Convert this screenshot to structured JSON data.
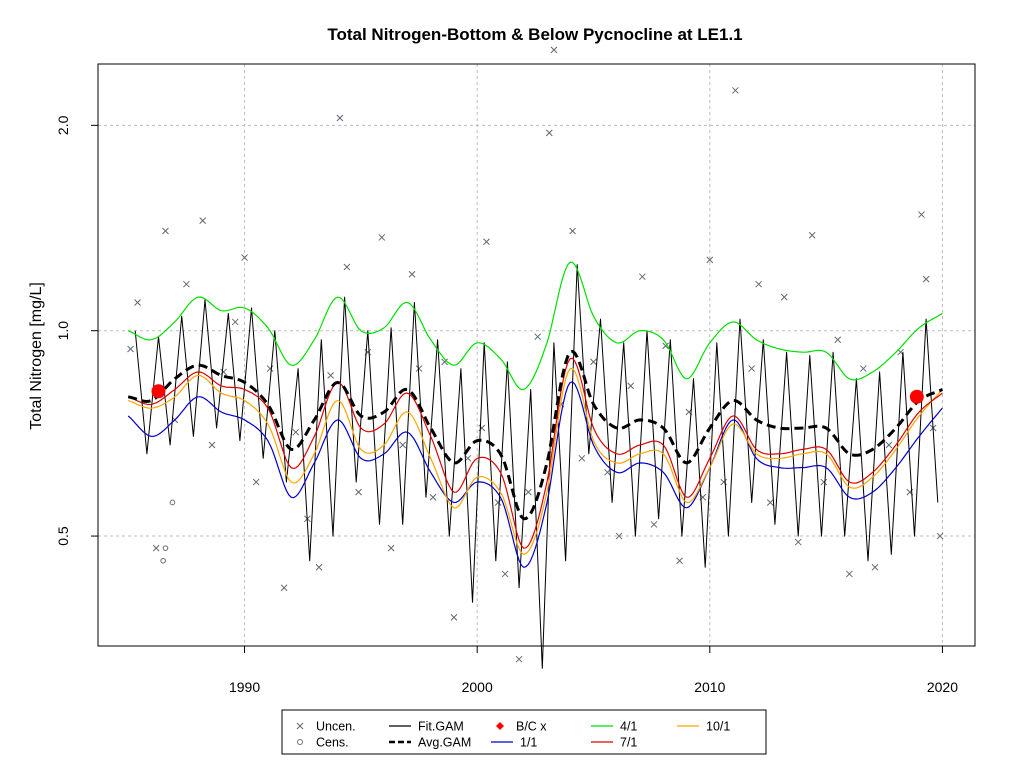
{
  "chart_data": {
    "type": "line",
    "title": "Total Nitrogen-Bottom & Below Pycnocline at LE1.1",
    "xlabel": "",
    "ylabel": "Total Nitrogen [mg/L]",
    "xlim": [
      1983.7,
      2021.4
    ],
    "ylim": [
      0.345,
      2.46
    ],
    "y_scale": "log",
    "x_ticks": [
      1990,
      2000,
      2010,
      2020
    ],
    "x_tick_labels": [
      "1990",
      "2000",
      "2010",
      "2020"
    ],
    "y_ticks": [
      0.5,
      1.0,
      2.0
    ],
    "y_tick_labels": [
      "0.5",
      "1.0",
      "2.0"
    ],
    "grid": true,
    "reference_line_y": 1.0,
    "legend": [
      {
        "key": "uncen",
        "label": "Uncen.",
        "symbol": "x",
        "color": "#606878"
      },
      {
        "key": "cens",
        "label": "Cens.",
        "symbol": "circle",
        "color": "#707070"
      },
      {
        "key": "fit",
        "label": "Fit.GAM",
        "symbol": "line",
        "color": "#000000"
      },
      {
        "key": "avg",
        "label": "Avg.GAM",
        "symbol": "dash",
        "color": "#000000"
      },
      {
        "key": "bc",
        "label": "B/C x",
        "symbol": "diamond",
        "color": "#ff0000"
      },
      {
        "key": "q1",
        "label": "1/1",
        "symbol": "line",
        "color": "#0000cd"
      },
      {
        "key": "q4",
        "label": "4/1",
        "symbol": "line",
        "color": "#00e000"
      },
      {
        "key": "q7",
        "label": "7/1",
        "symbol": "line",
        "color": "#e00000"
      },
      {
        "key": "q10",
        "label": "10/1",
        "symbol": "line",
        "color": "#ffa500"
      }
    ],
    "series": [
      {
        "key": "avg",
        "name": "Avg.GAM",
        "color": "#000000",
        "dash": true,
        "x": [
          1985.0,
          1986.0,
          1987.0,
          1988.0,
          1989.0,
          1990.0,
          1991.0,
          1992.0,
          1993.0,
          1994.0,
          1995.0,
          1996.0,
          1997.0,
          1998.0,
          1999.0,
          2000.0,
          2001.0,
          2002.0,
          2003.0,
          2004.0,
          2005.0,
          2006.0,
          2007.0,
          2008.0,
          2009.0,
          2010.0,
          2011.0,
          2012.0,
          2013.0,
          2014.0,
          2015.0,
          2016.0,
          2017.0,
          2018.0,
          2019.0,
          2020.0
        ],
        "y": [
          0.8,
          0.79,
          0.85,
          0.89,
          0.86,
          0.84,
          0.78,
          0.67,
          0.74,
          0.84,
          0.75,
          0.76,
          0.82,
          0.72,
          0.64,
          0.69,
          0.66,
          0.53,
          0.64,
          0.93,
          0.78,
          0.72,
          0.74,
          0.72,
          0.64,
          0.72,
          0.79,
          0.74,
          0.72,
          0.72,
          0.72,
          0.66,
          0.67,
          0.72,
          0.79,
          0.82
        ]
      },
      {
        "key": "q1",
        "name": "1/1",
        "color": "#0000cd",
        "x": [
          1985.0,
          1986.0,
          1987.0,
          1988.0,
          1989.0,
          1990.0,
          1991.0,
          1992.0,
          1993.0,
          1994.0,
          1995.0,
          1996.0,
          1997.0,
          1998.0,
          1999.0,
          2000.0,
          2001.0,
          2002.0,
          2003.0,
          2004.0,
          2005.0,
          2006.0,
          2007.0,
          2008.0,
          2009.0,
          2010.0,
          2011.0,
          2012.0,
          2013.0,
          2014.0,
          2015.0,
          2016.0,
          2017.0,
          2018.0,
          2019.0,
          2020.0
        ],
        "y": [
          0.75,
          0.7,
          0.74,
          0.8,
          0.76,
          0.74,
          0.69,
          0.57,
          0.64,
          0.74,
          0.65,
          0.66,
          0.71,
          0.62,
          0.56,
          0.6,
          0.57,
          0.45,
          0.56,
          0.84,
          0.68,
          0.62,
          0.64,
          0.62,
          0.55,
          0.63,
          0.74,
          0.65,
          0.63,
          0.63,
          0.63,
          0.57,
          0.58,
          0.63,
          0.7,
          0.77
        ]
      },
      {
        "key": "q4",
        "name": "4/1",
        "color": "#00e000",
        "x": [
          1985.0,
          1986.0,
          1987.0,
          1988.0,
          1989.0,
          1990.0,
          1991.0,
          1992.0,
          1993.0,
          1994.0,
          1995.0,
          1996.0,
          1997.0,
          1998.0,
          1999.0,
          2000.0,
          2001.0,
          2002.0,
          2003.0,
          2004.0,
          2005.0,
          2006.0,
          2007.0,
          2008.0,
          2009.0,
          2010.0,
          2011.0,
          2012.0,
          2013.0,
          2014.0,
          2015.0,
          2016.0,
          2017.0,
          2018.0,
          2019.0,
          2020.0
        ],
        "y": [
          1.0,
          0.97,
          1.03,
          1.12,
          1.07,
          1.08,
          1.01,
          0.89,
          0.97,
          1.12,
          1.0,
          1.01,
          1.1,
          0.97,
          0.89,
          0.96,
          0.91,
          0.82,
          0.96,
          1.26,
          1.05,
          0.96,
          1.0,
          0.97,
          0.85,
          0.96,
          1.03,
          0.97,
          0.94,
          0.93,
          0.93,
          0.85,
          0.87,
          0.93,
          1.01,
          1.06
        ]
      },
      {
        "key": "q7",
        "name": "7/1",
        "color": "#e00000",
        "x": [
          1985.0,
          1986.0,
          1987.0,
          1988.0,
          1989.0,
          1990.0,
          1991.0,
          1992.0,
          1993.0,
          1994.0,
          1995.0,
          1996.0,
          1997.0,
          1998.0,
          1999.0,
          2000.0,
          2001.0,
          2002.0,
          2003.0,
          2004.0,
          2005.0,
          2006.0,
          2007.0,
          2008.0,
          2009.0,
          2010.0,
          2011.0,
          2012.0,
          2013.0,
          2014.0,
          2015.0,
          2016.0,
          2017.0,
          2018.0,
          2019.0,
          2020.0
        ],
        "y": [
          0.8,
          0.78,
          0.82,
          0.87,
          0.83,
          0.82,
          0.77,
          0.63,
          0.7,
          0.84,
          0.72,
          0.73,
          0.81,
          0.7,
          0.58,
          0.65,
          0.62,
          0.48,
          0.6,
          0.91,
          0.72,
          0.66,
          0.68,
          0.68,
          0.57,
          0.65,
          0.75,
          0.67,
          0.66,
          0.67,
          0.67,
          0.6,
          0.62,
          0.68,
          0.76,
          0.81
        ]
      },
      {
        "key": "q10",
        "name": "10/1",
        "color": "#ffa500",
        "x": [
          1985.0,
          1986.0,
          1987.0,
          1988.0,
          1989.0,
          1990.0,
          1991.0,
          1992.0,
          1993.0,
          1994.0,
          1995.0,
          1996.0,
          1997.0,
          1998.0,
          1999.0,
          2000.0,
          2001.0,
          2002.0,
          2003.0,
          2004.0,
          2005.0,
          2006.0,
          2007.0,
          2008.0,
          2009.0,
          2010.0,
          2011.0,
          2012.0,
          2013.0,
          2014.0,
          2015.0,
          2016.0,
          2017.0,
          2018.0,
          2019.0,
          2020.0
        ],
        "y": [
          0.79,
          0.77,
          0.8,
          0.86,
          0.81,
          0.79,
          0.73,
          0.6,
          0.66,
          0.79,
          0.67,
          0.68,
          0.76,
          0.65,
          0.55,
          0.61,
          0.58,
          0.47,
          0.58,
          0.88,
          0.69,
          0.64,
          0.66,
          0.66,
          0.56,
          0.63,
          0.73,
          0.66,
          0.65,
          0.66,
          0.66,
          0.59,
          0.61,
          0.67,
          0.75,
          0.82
        ]
      }
    ],
    "fit_gam": {
      "name": "Fit.GAM",
      "color": "#000000",
      "peaks_x": [
        1985.3,
        1986.3,
        1987.3,
        1988.3,
        1989.3,
        1990.3,
        1991.3,
        1992.3,
        1993.3,
        1994.3,
        1995.3,
        1996.3,
        1997.3,
        1998.3,
        1999.3,
        2000.3,
        2001.3,
        2002.3,
        2003.3,
        2004.3,
        2005.3,
        2006.3,
        2007.3,
        2008.3,
        2009.3,
        2010.3,
        2011.3,
        2012.3,
        2013.3,
        2014.3,
        2015.3,
        2016.3,
        2017.3,
        2018.3,
        2019.3
      ],
      "peaks_y": [
        1.0,
        0.98,
        1.05,
        1.11,
        1.06,
        1.08,
        1.0,
        0.88,
        0.97,
        1.12,
        1.0,
        1.01,
        1.1,
        0.97,
        0.88,
        0.96,
        0.9,
        0.82,
        0.96,
        1.25,
        1.04,
        0.96,
        1.0,
        0.97,
        0.85,
        0.96,
        1.04,
        0.97,
        0.93,
        0.92,
        0.93,
        0.85,
        0.87,
        0.93,
        1.04
      ],
      "troughs_x": [
        1985.8,
        1986.8,
        1987.8,
        1988.8,
        1989.8,
        1990.8,
        1991.8,
        1992.8,
        1993.8,
        1994.8,
        1995.8,
        1996.8,
        1997.8,
        1998.8,
        1999.8,
        2000.8,
        2001.8,
        2002.8,
        2003.8,
        2004.8,
        2005.8,
        2006.8,
        2007.8,
        2008.8,
        2009.8,
        2010.8,
        2011.8,
        2012.8,
        2013.8,
        2014.8,
        2015.8,
        2016.8,
        2017.8,
        2018.8,
        2019.8
      ],
      "troughs_y": [
        0.66,
        0.68,
        0.7,
        0.72,
        0.69,
        0.65,
        0.6,
        0.46,
        0.5,
        0.6,
        0.52,
        0.52,
        0.57,
        0.5,
        0.4,
        0.46,
        0.42,
        0.32,
        0.46,
        0.66,
        0.56,
        0.5,
        0.53,
        0.5,
        0.45,
        0.5,
        0.56,
        0.52,
        0.5,
        0.5,
        0.5,
        0.46,
        0.47,
        0.5,
        0.56
      ]
    },
    "bc_points": {
      "name": "B/C x",
      "color": "#ff0000",
      "x": [
        1986.3,
        2018.9
      ],
      "y": [
        0.815,
        0.8
      ]
    },
    "uncen_points": {
      "name": "Uncen.",
      "color": "#606878",
      "x": [
        1985.1,
        1985.4,
        1986.2,
        1986.6,
        1987.0,
        1987.5,
        1988.2,
        1988.6,
        1989.1,
        1989.6,
        1990.0,
        1990.5,
        1991.1,
        1991.7,
        1992.2,
        1992.7,
        1993.2,
        1993.7,
        1994.1,
        1994.4,
        1994.9,
        1995.3,
        1995.9,
        1996.3,
        1996.8,
        1997.2,
        1997.5,
        1998.1,
        1998.6,
        1999.0,
        1999.6,
        2000.2,
        2000.4,
        2000.9,
        2001.2,
        2001.8,
        2002.2,
        2002.6,
        2003.1,
        2003.3,
        2003.6,
        2004.1,
        2004.5,
        2005.0,
        2005.6,
        2006.1,
        2006.6,
        2007.1,
        2007.6,
        2008.1,
        2008.7,
        2009.1,
        2009.7,
        2010.0,
        2010.6,
        2011.1,
        2011.8,
        2012.1,
        2012.6,
        2013.2,
        2013.8,
        2014.4,
        2014.9,
        2015.5,
        2016.0,
        2016.6,
        2017.1,
        2017.7,
        2018.2,
        2018.6,
        2019.1,
        2019.3,
        2019.6,
        2019.9
      ],
      "y": [
        0.94,
        1.1,
        0.48,
        1.4,
        0.74,
        1.17,
        1.45,
        0.68,
        0.87,
        1.03,
        1.28,
        0.6,
        0.88,
        0.42,
        0.71,
        0.53,
        0.45,
        0.86,
        2.05,
        1.24,
        0.58,
        0.93,
        1.37,
        0.48,
        0.68,
        1.21,
        0.88,
        0.57,
        0.9,
        0.38,
        0.65,
        0.72,
        1.35,
        0.56,
        0.44,
        0.33,
        0.58,
        0.98,
        1.95,
        2.58,
        0.78,
        1.4,
        0.65,
        0.9,
        0.62,
        0.5,
        0.83,
        1.2,
        0.52,
        0.95,
        0.46,
        0.76,
        0.57,
        1.27,
        0.6,
        2.25,
        0.88,
        1.17,
        0.56,
        1.12,
        0.49,
        1.38,
        0.6,
        0.97,
        0.44,
        0.88,
        0.45,
        0.68,
        0.93,
        0.58,
        1.48,
        1.19,
        0.72,
        0.5
      ]
    },
    "cens_points": {
      "name": "Cens.",
      "color": "#707070",
      "x": [
        1986.5,
        1986.6,
        1986.9
      ],
      "y": [
        0.46,
        0.48,
        0.56
      ]
    }
  }
}
